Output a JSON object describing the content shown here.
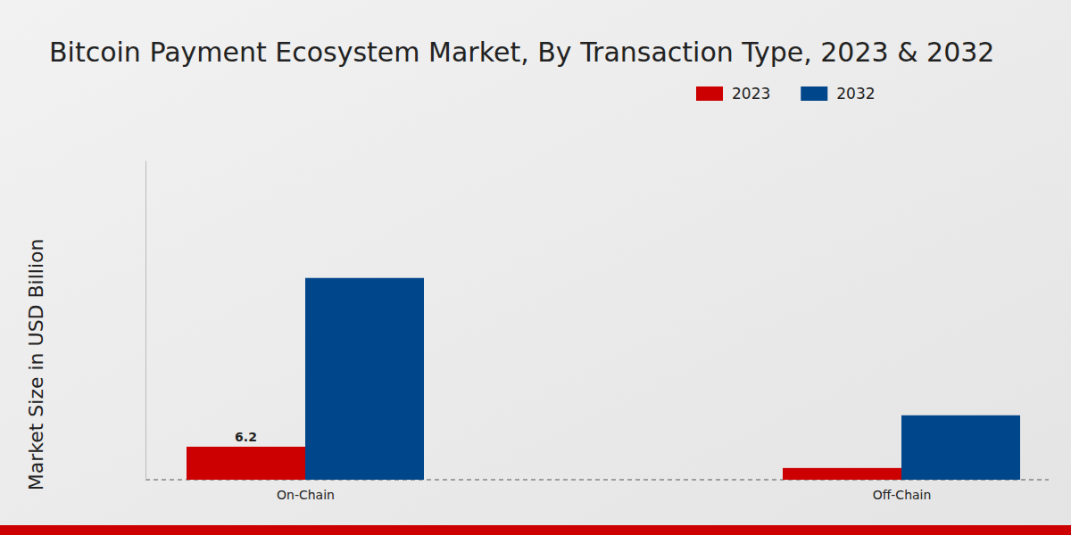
{
  "chart_data": {
    "type": "bar",
    "title": "Bitcoin Payment Ecosystem Market, By Transaction Type, 2023 & 2032",
    "y_label": "Market Size in USD Billion",
    "categories": [
      "On-Chain",
      "Off-Chain"
    ],
    "series": [
      {
        "name": "2023",
        "color": "#cc0000",
        "values": [
          6.2,
          2.2
        ],
        "data_labels": true,
        "value_labels": [
          "6.2",
          null
        ]
      },
      {
        "name": "2032",
        "color": "#00468b",
        "values": [
          37.9,
          12.1
        ]
      }
    ],
    "ylim": [
      0,
      60
    ],
    "yticks": [],
    "tick_labels": "x",
    "grid": false,
    "legend": "top-right"
  }
}
